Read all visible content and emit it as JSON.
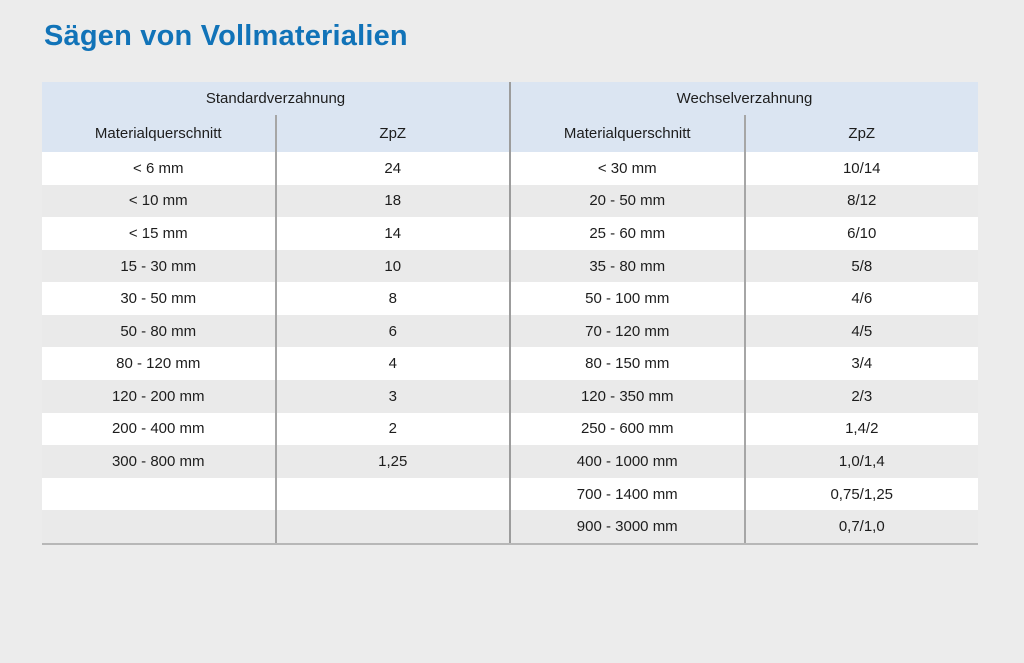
{
  "page": {
    "title": "Sägen von Vollmaterialien"
  },
  "colors": {
    "title_blue": "#1173b8",
    "header_bg": "#dbe5f2",
    "row_alt": "#eaeaea",
    "page_bg": "#ececec",
    "divider": "#9c9c9c"
  },
  "table": {
    "sections": [
      {
        "title": "Standardverzahnung",
        "columns": [
          "Materialquerschnitt",
          "ZpZ"
        ],
        "rows": [
          [
            "< 6 mm",
            "24"
          ],
          [
            "< 10 mm",
            "18"
          ],
          [
            "< 15 mm",
            "14"
          ],
          [
            "15 - 30 mm",
            "10"
          ],
          [
            "30 - 50 mm",
            "8"
          ],
          [
            "50 - 80 mm",
            "6"
          ],
          [
            "80 - 120 mm",
            "4"
          ],
          [
            "120 - 200 mm",
            "3"
          ],
          [
            "200 - 400 mm",
            "2"
          ],
          [
            "300 - 800 mm",
            "1,25"
          ],
          [
            "",
            ""
          ],
          [
            "",
            ""
          ]
        ]
      },
      {
        "title": "Wechselverzahnung",
        "columns": [
          "Materialquerschnitt",
          "ZpZ"
        ],
        "rows": [
          [
            "< 30 mm",
            "10/14"
          ],
          [
            "20 - 50 mm",
            "8/12"
          ],
          [
            "25 - 60 mm",
            "6/10"
          ],
          [
            "35 - 80 mm",
            "5/8"
          ],
          [
            "50 - 100 mm",
            "4/6"
          ],
          [
            "70 - 120 mm",
            "4/5"
          ],
          [
            "80 - 150 mm",
            "3/4"
          ],
          [
            "120 - 350 mm",
            "2/3"
          ],
          [
            "250 - 600 mm",
            "1,4/2"
          ],
          [
            "400 - 1000 mm",
            "1,0/1,4"
          ],
          [
            "700 - 1400 mm",
            "0,75/1,25"
          ],
          [
            "900 - 3000 mm",
            "0,7/1,0"
          ]
        ]
      }
    ]
  }
}
